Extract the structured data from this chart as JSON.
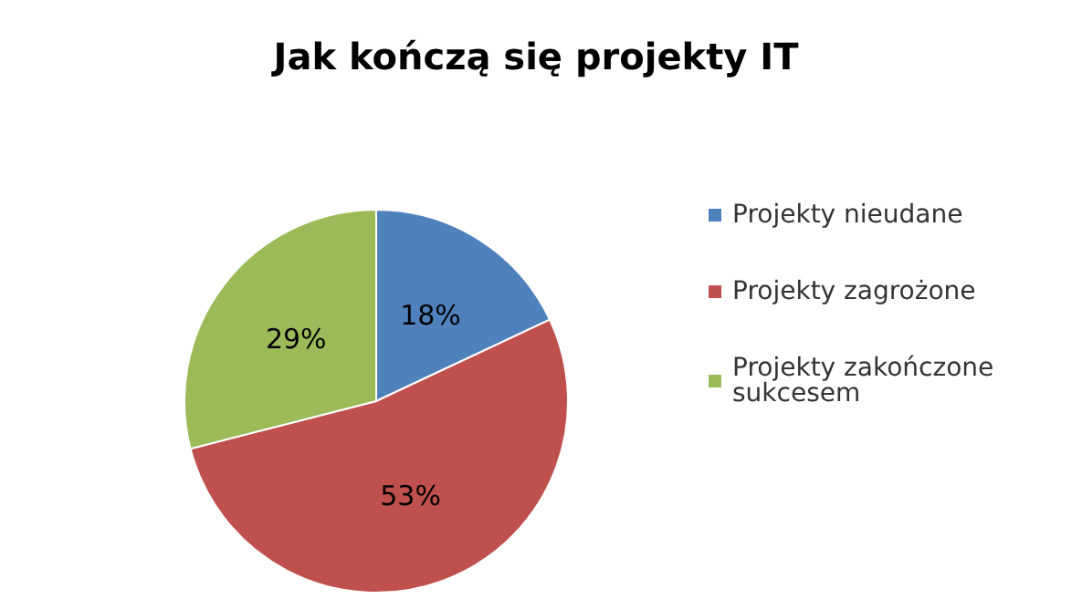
{
  "chart_data": {
    "type": "pie",
    "title": "Jak kończą się projekty IT",
    "categories": [
      "Projekty nieudane",
      "Projekty zagrożone",
      "Projekty zakończone sukcesem"
    ],
    "values": [
      18,
      53,
      29
    ],
    "colors": [
      "#4f81bd",
      "#c0504d",
      "#9bbb59"
    ],
    "value_labels": [
      "18%",
      "53%",
      "29%"
    ],
    "legend": "right"
  }
}
